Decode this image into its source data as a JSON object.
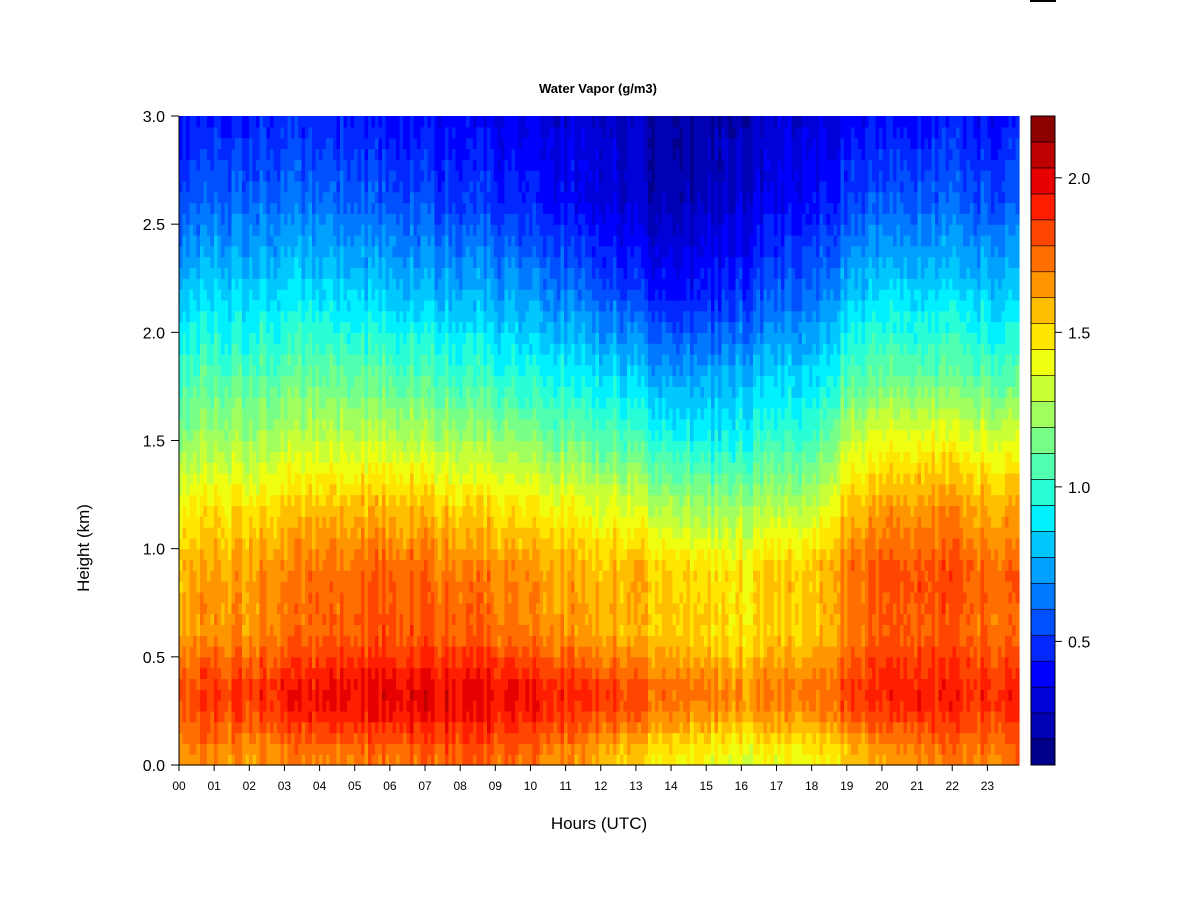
{
  "chart_data": {
    "type": "heatmap",
    "title": "Water Vapor (g/m3)",
    "xlabel": "Hours (UTC)",
    "ylabel": "Height (km)",
    "x_range": [
      0,
      23.9
    ],
    "y_range": [
      0.0,
      3.0
    ],
    "x_tick_labels": [
      "00",
      "01",
      "02",
      "03",
      "04",
      "05",
      "06",
      "07",
      "08",
      "09",
      "10",
      "11",
      "12",
      "13",
      "14",
      "15",
      "16",
      "17",
      "18",
      "19",
      "20",
      "21",
      "22",
      "23"
    ],
    "y_ticks": [
      0.0,
      0.5,
      1.0,
      1.5,
      2.0,
      2.5,
      3.0
    ],
    "y_tick_labels": [
      "0.0",
      "0.5",
      "1.0",
      "1.5",
      "2.0",
      "2.5",
      "3.0"
    ],
    "colorbar": {
      "range": [
        0.1,
        2.2
      ],
      "ticks": [
        0.5,
        1.0,
        1.5,
        2.0
      ],
      "tick_labels": [
        "0.5",
        "1.0",
        "1.5",
        "2.0"
      ],
      "colors": [
        "#00008c",
        "#0000b4",
        "#0000d8",
        "#0000ff",
        "#0028ff",
        "#0050ff",
        "#0078ff",
        "#00a0ff",
        "#00c8ff",
        "#00f0ff",
        "#28ffd7",
        "#50ffaf",
        "#78ff87",
        "#a0ff5f",
        "#c8ff37",
        "#f0ff0f",
        "#ffe600",
        "#ffbe00",
        "#ff9600",
        "#ff6e00",
        "#ff4600",
        "#ff1e00",
        "#e60000",
        "#be0000",
        "#8c0000"
      ]
    },
    "heights_km": [
      0.05,
      0.25,
      0.35,
      0.6,
      0.9,
      1.2,
      1.5,
      1.8,
      2.2,
      2.6,
      3.0
    ],
    "hours": [
      0,
      2,
      4,
      6,
      8,
      10,
      12,
      13,
      14,
      15,
      16,
      17,
      18,
      19,
      20,
      21,
      22,
      23.9
    ],
    "values": [
      [
        1.68,
        1.66,
        1.7,
        1.74,
        1.78,
        1.74,
        1.62,
        1.52,
        1.45,
        1.4,
        1.38,
        1.4,
        1.42,
        1.55,
        1.62,
        1.68,
        1.7,
        1.7
      ],
      [
        1.82,
        1.85,
        1.92,
        1.97,
        1.95,
        1.92,
        1.85,
        1.78,
        1.72,
        1.66,
        1.64,
        1.66,
        1.68,
        1.8,
        1.86,
        1.9,
        1.88,
        1.85
      ],
      [
        1.85,
        1.88,
        1.95,
        2.0,
        1.98,
        1.95,
        1.88,
        1.8,
        1.75,
        1.7,
        1.68,
        1.7,
        1.72,
        1.82,
        1.9,
        1.93,
        1.9,
        1.88
      ],
      [
        1.65,
        1.68,
        1.75,
        1.82,
        1.78,
        1.72,
        1.62,
        1.58,
        1.55,
        1.5,
        1.48,
        1.52,
        1.55,
        1.7,
        1.78,
        1.8,
        1.78,
        1.72
      ],
      [
        1.6,
        1.65,
        1.72,
        1.78,
        1.72,
        1.66,
        1.58,
        1.6,
        1.52,
        1.48,
        1.48,
        1.52,
        1.55,
        1.72,
        1.8,
        1.82,
        1.8,
        1.72
      ],
      [
        1.45,
        1.48,
        1.55,
        1.6,
        1.52,
        1.45,
        1.38,
        1.35,
        1.25,
        1.2,
        1.22,
        1.25,
        1.28,
        1.55,
        1.62,
        1.66,
        1.64,
        1.58
      ],
      [
        1.22,
        1.25,
        1.3,
        1.32,
        1.25,
        1.18,
        1.1,
        1.05,
        0.95,
        0.92,
        0.95,
        1.0,
        1.02,
        1.3,
        1.4,
        1.44,
        1.4,
        1.32
      ],
      [
        1.05,
        1.08,
        1.1,
        1.1,
        1.02,
        0.96,
        0.88,
        0.82,
        0.72,
        0.72,
        0.78,
        0.82,
        0.85,
        1.05,
        1.1,
        1.12,
        1.1,
        1.05
      ],
      [
        0.82,
        0.85,
        0.85,
        0.82,
        0.76,
        0.7,
        0.58,
        0.5,
        0.4,
        0.42,
        0.48,
        0.55,
        0.6,
        0.78,
        0.85,
        0.86,
        0.84,
        0.8
      ],
      [
        0.58,
        0.62,
        0.62,
        0.58,
        0.52,
        0.45,
        0.35,
        0.28,
        0.22,
        0.24,
        0.3,
        0.36,
        0.4,
        0.52,
        0.58,
        0.6,
        0.58,
        0.55
      ],
      [
        0.42,
        0.45,
        0.45,
        0.42,
        0.38,
        0.34,
        0.3,
        0.24,
        0.18,
        0.18,
        0.22,
        0.28,
        0.32,
        0.38,
        0.4,
        0.42,
        0.42,
        0.4
      ]
    ]
  }
}
